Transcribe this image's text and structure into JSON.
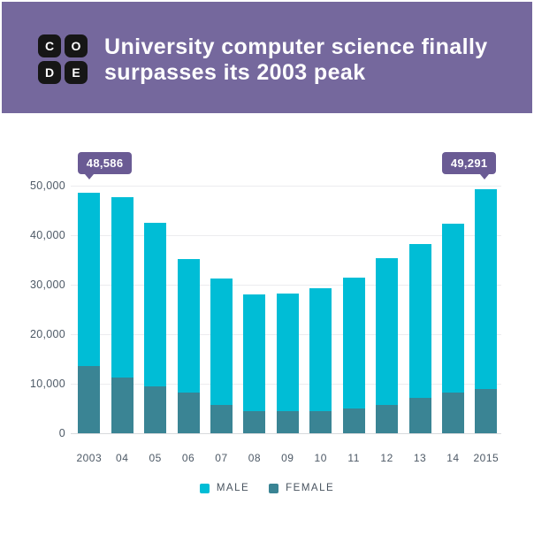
{
  "header": {
    "logo_letters": [
      "C",
      "O",
      "D",
      "E"
    ],
    "title_line1": "University computer science finally",
    "title_line2": "surpasses its 2003 peak",
    "background_color": "#75689d",
    "logo_tile_color": "#161616"
  },
  "chart_data": {
    "type": "bar",
    "stacked": true,
    "title": "University computer science finally surpasses its 2003 peak",
    "categories": [
      "2003",
      "04",
      "05",
      "06",
      "07",
      "08",
      "09",
      "10",
      "11",
      "12",
      "13",
      "14",
      "2015"
    ],
    "series": [
      {
        "name": "MALE",
        "color": "#00bdd6",
        "values": [
          35086,
          36400,
          33100,
          27000,
          25500,
          23600,
          23800,
          24800,
          26400,
          29700,
          31100,
          34100,
          40391
        ]
      },
      {
        "name": "FEMALE",
        "color": "#3a8494",
        "values": [
          13500,
          11200,
          9400,
          8200,
          5800,
          4500,
          4400,
          4500,
          5000,
          5700,
          7200,
          8200,
          8900
        ]
      }
    ],
    "annotations": [
      {
        "index": 0,
        "label": "48,586",
        "arrow": "left"
      },
      {
        "index": 12,
        "label": "49,291",
        "arrow": "right"
      }
    ],
    "annotation_color": "#6a5b94",
    "ylim": [
      0,
      50000
    ],
    "yticks": [
      "0",
      "10,000",
      "20,000",
      "30,000",
      "40,000",
      "50,000"
    ],
    "grid": "horizontal",
    "legend_position": "bottom"
  }
}
